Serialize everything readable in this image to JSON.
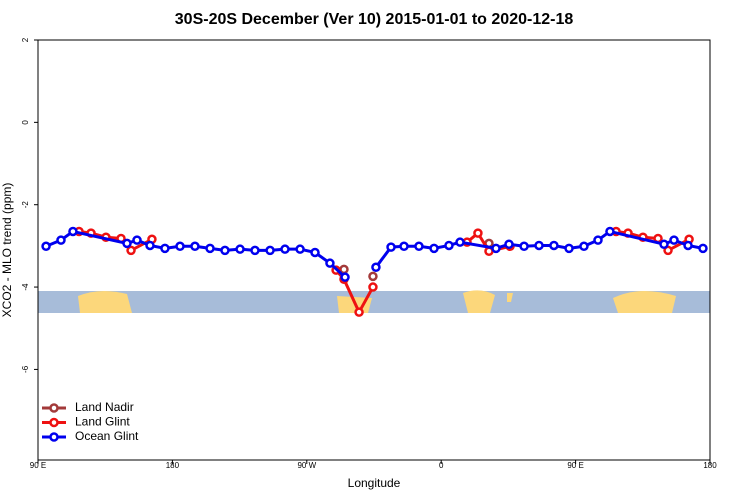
{
  "chart_data": {
    "type": "line",
    "title": "30S-20S December (Ver 10)   2015-01-01 to 2020-12-18",
    "xlabel": "Longitude",
    "ylabel": "XCO2 - MLO trend (ppm)",
    "xlim": [
      90,
      540
    ],
    "ylim": [
      -8.2,
      2
    ],
    "xticks": [
      {
        "value": 90,
        "label": "90 E"
      },
      180,
      {
        "value": 270,
        "label": "90 W"
      },
      {
        "value": 360,
        "label": "0"
      },
      {
        "value": 450,
        "label": "90 E"
      },
      {
        "value": 540,
        "label": "180"
      }
    ],
    "yticks": [
      2,
      0,
      -2,
      -4,
      -6
    ],
    "legend": "bottom-left",
    "series": [
      {
        "name": "Land Nadir",
        "color": "#a33a3a",
        "x": [
          294.9,
          null,
          314.3,
          null,
          392.0
        ],
        "values": [
          -3.57,
          null,
          -3.74,
          null,
          -2.94
        ]
      },
      {
        "name": "Land Glint",
        "color": "#ee1111",
        "x": [
          117.5,
          125.5,
          135.5,
          145.6,
          152.3,
          166.3,
          null,
          289.6,
          294.9,
          305.0,
          314.3,
          null,
          377.3,
          384.6,
          392.0,
          406.1,
          null,
          477.1,
          485.1,
          495.1,
          505.2,
          511.9,
          526.0
        ],
        "values": [
          -2.65,
          -2.69,
          -2.79,
          -2.82,
          -3.11,
          -2.84,
          null,
          -3.59,
          -3.81,
          -4.61,
          -4.0,
          null,
          -2.91,
          -2.69,
          -3.13,
          -3.01,
          null,
          -2.65,
          -2.69,
          -2.79,
          -2.82,
          -3.11,
          -2.84
        ]
      },
      {
        "name": "Ocean Glint",
        "color": "#0000ee",
        "x": [
          95.4,
          105.4,
          113.4,
          149.6,
          156.3,
          165.0,
          175.0,
          185.1,
          195.1,
          205.2,
          215.2,
          225.3,
          235.3,
          245.4,
          255.4,
          265.5,
          275.5,
          285.5,
          295.6,
          null,
          316.3,
          326.4,
          335.1,
          345.1,
          355.2,
          365.2,
          372.6,
          396.7,
          405.4,
          415.5,
          425.5,
          435.5,
          445.6,
          455.6,
          465.0,
          473.0,
          509.2,
          515.9,
          525.3,
          535.3
        ],
        "values": [
          -3.01,
          -2.86,
          -2.65,
          -2.94,
          -2.86,
          -2.99,
          -3.06,
          -3.01,
          -3.01,
          -3.06,
          -3.11,
          -3.08,
          -3.11,
          -3.11,
          -3.08,
          -3.08,
          -3.16,
          -3.42,
          -3.76,
          null,
          -3.52,
          -3.03,
          -3.01,
          -3.01,
          -3.06,
          -2.99,
          -2.91,
          -3.06,
          -2.96,
          -3.01,
          -2.99,
          -2.99,
          -3.06,
          -3.01,
          -2.86,
          -2.65,
          -2.96,
          -2.86,
          -2.99,
          -3.06
        ]
      }
    ]
  }
}
